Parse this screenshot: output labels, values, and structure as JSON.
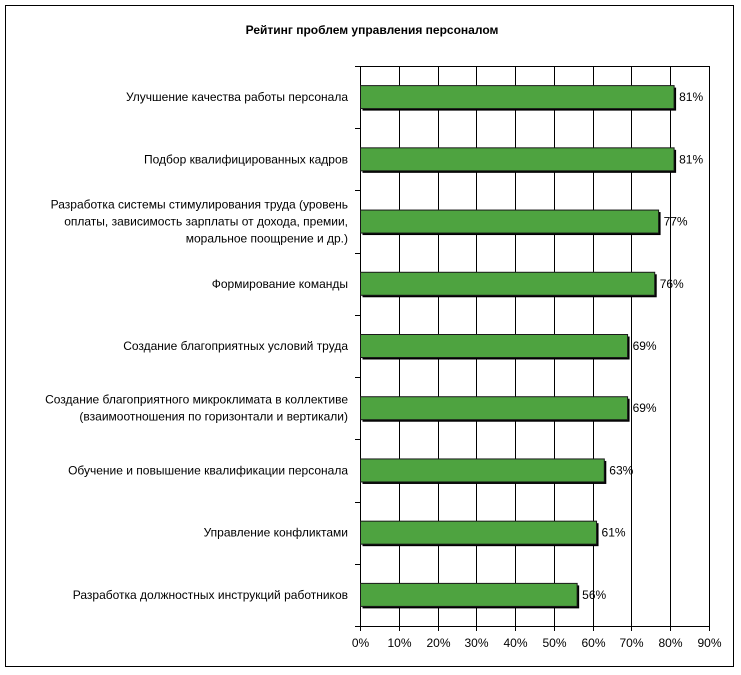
{
  "chart_data": {
    "type": "bar",
    "orientation": "horizontal",
    "title": "Рейтинг проблем управления персоналом",
    "categories": [
      [
        "Улучшение качества работы персонала"
      ],
      [
        "Подбор квалифицированных кадров"
      ],
      [
        "Разработка системы стимулирования труда (уровень",
        "оплаты, зависимость зарплаты от дохода, премии,",
        "моральное поощрение и др.)"
      ],
      [
        "Формирование команды"
      ],
      [
        "Создание благоприятных условий труда"
      ],
      [
        "Создание благоприятного микроклимата в коллективе",
        "(взаимоотношения по горизонтали и вертикали)"
      ],
      [
        "Обучение и повышение квалификации персонала"
      ],
      [
        "Управление конфликтами"
      ],
      [
        "Разработка должностных инструкций работников"
      ]
    ],
    "values": [
      81,
      81,
      77,
      76,
      69,
      69,
      63,
      61,
      56
    ],
    "value_labels": [
      "81%",
      "81%",
      "77%",
      "76%",
      "69%",
      "69%",
      "63%",
      "61%",
      "56%"
    ],
    "xlim": [
      0,
      90
    ],
    "xticks": [
      "0%",
      "10%",
      "20%",
      "30%",
      "40%",
      "50%",
      "60%",
      "70%",
      "80%",
      "90%"
    ],
    "grid": "vertical",
    "bar_color": "#4ea340",
    "bar_border_color": "#1a1a1a",
    "legend": "none"
  }
}
